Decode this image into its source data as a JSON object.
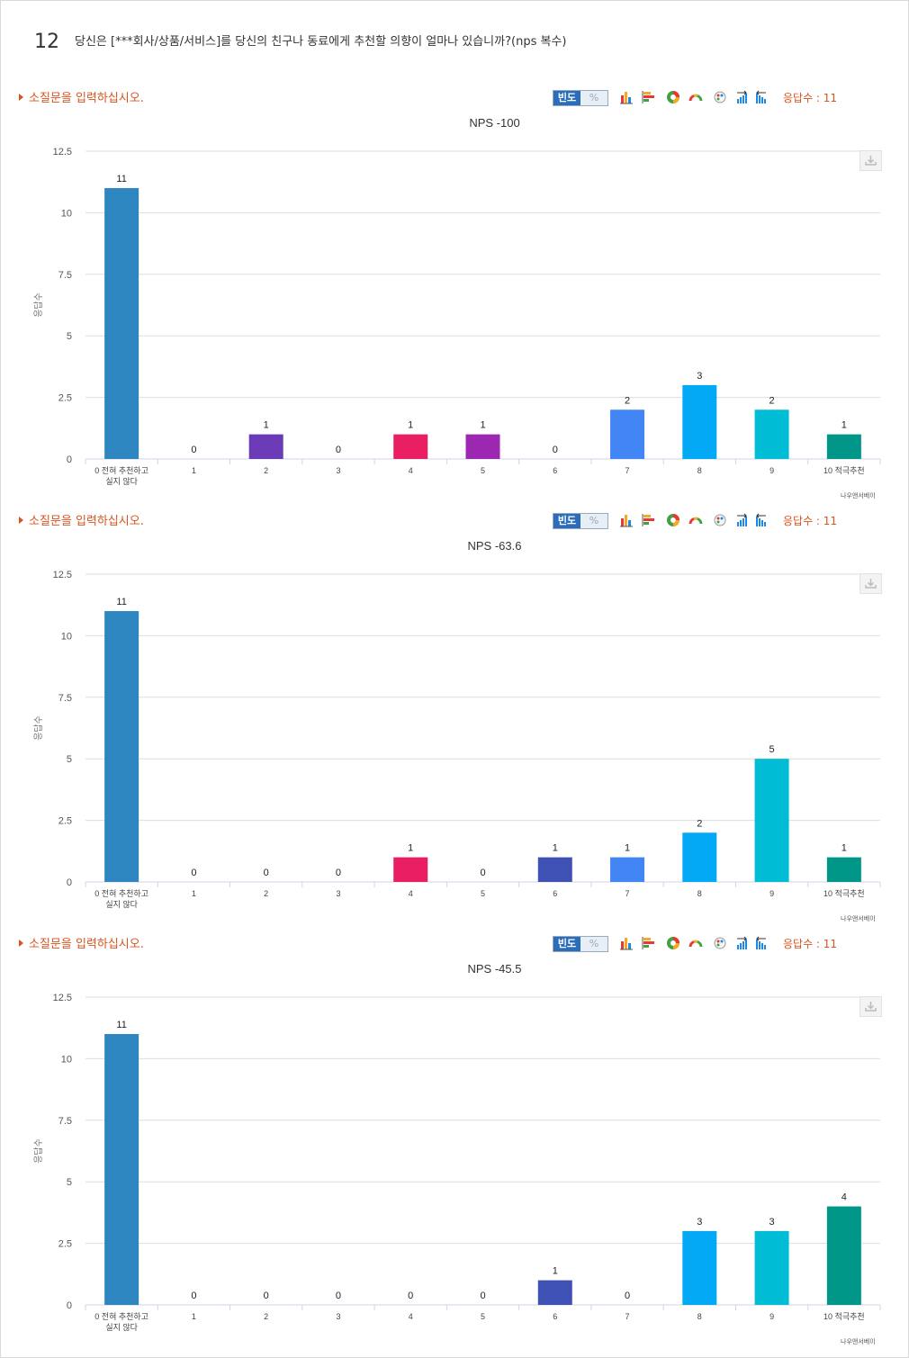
{
  "question": {
    "number": "12",
    "text": "당신은 [***회사/상품/서비스]를 당신의 친구나 동료에게 추천할 의향이 얼마나 있습니까?(nps 복수)"
  },
  "toolbar": {
    "freq_label": "빈도",
    "pct_label": "%",
    "icons": [
      "bar-chart-icon",
      "horizontal-bar-icon",
      "donut-chart-icon",
      "gauge-icon",
      "palette-icon",
      "ascending-sort-icon",
      "descending-sort-icon"
    ]
  },
  "colors": {
    "accent": "#d9531e",
    "toggle_on": "#2a6ebb",
    "grid": "#dddddd",
    "axis": "#ccd6eb"
  },
  "sections": [
    {
      "subtitle": "소질문을 입력하십시오.",
      "response_count": "응답수 : 11",
      "credit": "나우앤서베이"
    },
    {
      "subtitle": "소질문을 입력하십시오.",
      "response_count": "응답수 : 11",
      "credit": "나우앤서베이"
    },
    {
      "subtitle": "소질문을 입력하십시오.",
      "response_count": "응답수 : 11",
      "credit": "나우앤서베이"
    }
  ],
  "chart_data": [
    {
      "type": "bar",
      "title": "NPS -100",
      "ylabel": "응답수",
      "ylim": [
        0,
        12.5
      ],
      "yticks": [
        "0",
        "2.5",
        "5",
        "7.5",
        "10",
        "12.5"
      ],
      "categories": [
        "0 전혀 추천하고 실지 않다",
        "1",
        "2",
        "3",
        "4",
        "5",
        "6",
        "7",
        "8",
        "9",
        "10 적극추천"
      ],
      "values": [
        11,
        0,
        1,
        0,
        1,
        1,
        0,
        2,
        3,
        2,
        1
      ],
      "colors": [
        "#2e86c1",
        "#6a3ab7",
        "#6a3ab7",
        "#6a3ab7",
        "#e91e63",
        "#9c27b0",
        "#3f51b5",
        "#4285f4",
        "#03a9f4",
        "#00bcd4",
        "#009688"
      ]
    },
    {
      "type": "bar",
      "title": "NPS -63.6",
      "ylabel": "응답수",
      "ylim": [
        0,
        12.5
      ],
      "yticks": [
        "0",
        "2.5",
        "5",
        "7.5",
        "10",
        "12.5"
      ],
      "categories": [
        "0 전혀 추천하고 실지 않다",
        "1",
        "2",
        "3",
        "4",
        "5",
        "6",
        "7",
        "8",
        "9",
        "10 적극추천"
      ],
      "values": [
        11,
        0,
        0,
        0,
        1,
        0,
        1,
        1,
        2,
        5,
        1
      ],
      "colors": [
        "#2e86c1",
        "#6a3ab7",
        "#6a3ab7",
        "#6a3ab7",
        "#e91e63",
        "#9c27b0",
        "#3f51b5",
        "#4285f4",
        "#03a9f4",
        "#00bcd4",
        "#009688"
      ]
    },
    {
      "type": "bar",
      "title": "NPS -45.5",
      "ylabel": "응답수",
      "ylim": [
        0,
        12.5
      ],
      "yticks": [
        "0",
        "2.5",
        "5",
        "7.5",
        "10",
        "12.5"
      ],
      "categories": [
        "0 전혀 추천하고 실지 않다",
        "1",
        "2",
        "3",
        "4",
        "5",
        "6",
        "7",
        "8",
        "9",
        "10 적극추천"
      ],
      "values": [
        11,
        0,
        0,
        0,
        0,
        0,
        1,
        0,
        3,
        3,
        4
      ],
      "colors": [
        "#2e86c1",
        "#6a3ab7",
        "#6a3ab7",
        "#6a3ab7",
        "#e91e63",
        "#9c27b0",
        "#3f51b5",
        "#4285f4",
        "#03a9f4",
        "#00bcd4",
        "#009688"
      ]
    }
  ]
}
